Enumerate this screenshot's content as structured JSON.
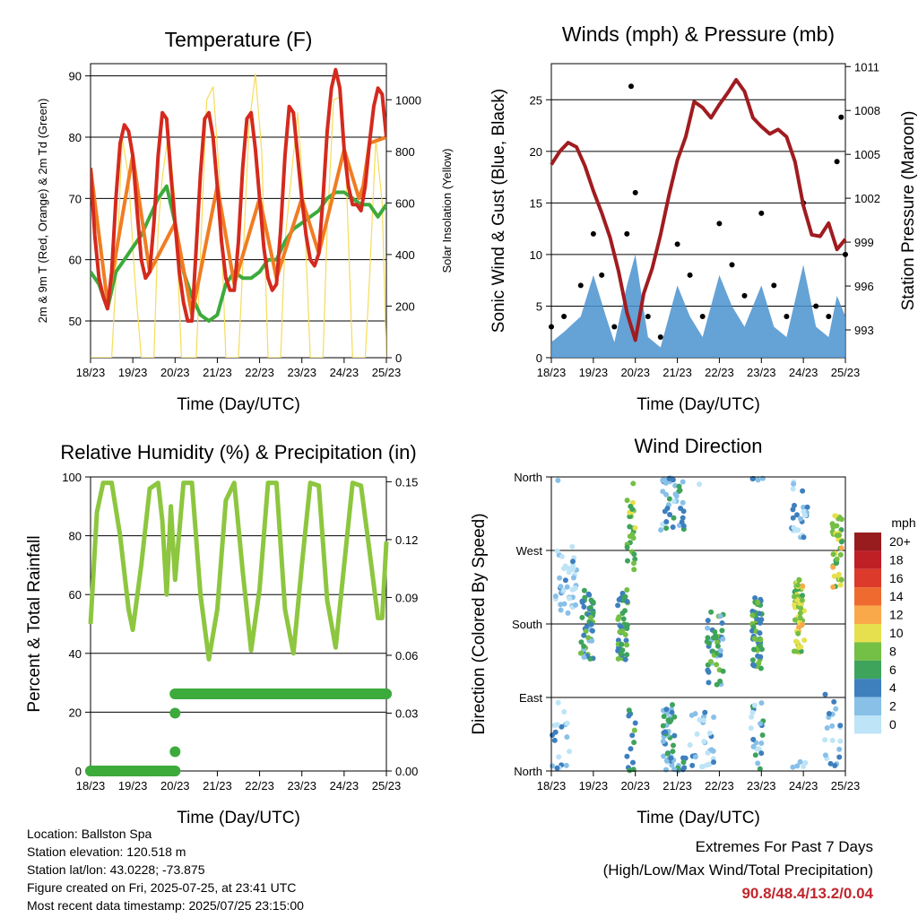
{
  "chart_data": [
    {
      "type": "line",
      "title": "Temperature (F)",
      "xlabel": "Time (Day/UTC)",
      "ylabel": "2m & 9m T (Red, Orange) & 2m Td (Green)",
      "y2label": "Solar Insolation (Yellow)",
      "x_ticks": [
        "18/23",
        "19/23",
        "20/23",
        "21/23",
        "22/23",
        "23/23",
        "24/23",
        "25/23"
      ],
      "ylim": [
        44,
        92
      ],
      "y_ticks": [
        50,
        60,
        70,
        80,
        90
      ],
      "y2lim": [
        0,
        1140
      ],
      "y2_ticks": [
        0,
        200,
        400,
        600,
        800,
        1000
      ],
      "grid": "horizontal",
      "colors": {
        "temp_2m": "#d42a1e",
        "temp_9m": "#f07d22",
        "dewpoint": "#3daa3c",
        "solar": "#f6dc5a"
      },
      "series": [
        {
          "name": "2m T",
          "axis": "left",
          "x": [
            0,
            0.1,
            0.2,
            0.3,
            0.4,
            0.5,
            0.6,
            0.7,
            0.8,
            0.9,
            1.0,
            1.1,
            1.2,
            1.3,
            1.4,
            1.5,
            1.6,
            1.7,
            1.8,
            1.9,
            2.0,
            2.1,
            2.2,
            2.3,
            2.4,
            2.5,
            2.6,
            2.7,
            2.8,
            2.9,
            3.0,
            3.1,
            3.2,
            3.3,
            3.4,
            3.5,
            3.6,
            3.7,
            3.8,
            3.9,
            4.0,
            4.1,
            4.2,
            4.3,
            4.4,
            4.5,
            4.6,
            4.7,
            4.8,
            4.9,
            5.0,
            5.1,
            5.2,
            5.3,
            5.4,
            5.5,
            5.6,
            5.7,
            5.8,
            5.9,
            6.0,
            6.1,
            6.2,
            6.3,
            6.4,
            6.5,
            6.6,
            6.7,
            6.8,
            6.9,
            7.0
          ],
          "y": [
            75,
            64,
            57,
            54,
            52,
            58,
            70,
            79,
            82,
            81,
            77,
            68,
            60,
            57,
            58,
            66,
            77,
            84,
            83,
            74,
            66,
            58,
            53,
            50,
            50,
            62,
            74,
            83,
            84,
            80,
            72,
            63,
            57,
            55,
            55,
            63,
            75,
            83,
            84,
            78,
            70,
            62,
            57,
            55,
            56,
            65,
            77,
            85,
            84,
            77,
            70,
            64,
            60,
            59,
            61,
            70,
            81,
            88,
            91,
            88,
            78,
            72,
            69,
            69,
            68,
            72,
            79,
            85,
            88,
            87,
            80
          ]
        },
        {
          "name": "9m T",
          "axis": "left",
          "x": [
            0,
            0.4,
            1.0,
            1.4,
            2.0,
            2.4,
            3.0,
            3.4,
            4.0,
            4.4,
            5.0,
            5.4,
            6.0,
            6.35,
            6.45,
            6.6,
            7.0
          ],
          "y": [
            75,
            53,
            77,
            58,
            66,
            51,
            72,
            56,
            70,
            57,
            70,
            61,
            78,
            70,
            72,
            79,
            80
          ]
        },
        {
          "name": "2m Td",
          "axis": "left",
          "x": [
            0,
            0.2,
            0.4,
            0.6,
            0.8,
            1.0,
            1.2,
            1.4,
            1.6,
            1.8,
            2.0,
            2.2,
            2.4,
            2.6,
            2.8,
            3.0,
            3.2,
            3.4,
            3.6,
            3.8,
            4.0,
            4.2,
            4.4,
            4.6,
            4.8,
            5.0,
            5.2,
            5.4,
            5.6,
            5.8,
            6.0,
            6.2,
            6.4,
            6.6,
            6.8,
            7.0
          ],
          "y": [
            58,
            56,
            52,
            58,
            60,
            62,
            64,
            67,
            70,
            72,
            66,
            58,
            54,
            51,
            50,
            51,
            56,
            58,
            57,
            57,
            58,
            60,
            60,
            63,
            65,
            66,
            67,
            68,
            70,
            71,
            71,
            70,
            69,
            69,
            67,
            69
          ]
        },
        {
          "name": "Solar",
          "axis": "right",
          "x": [
            0,
            0.5,
            0.6,
            0.75,
            0.9,
            1.05,
            1.2,
            1.5,
            1.6,
            1.7,
            1.85,
            2.0,
            2.15,
            2.5,
            2.6,
            2.75,
            2.9,
            3.05,
            3.2,
            3.5,
            3.6,
            3.75,
            3.9,
            4.05,
            4.2,
            4.5,
            4.6,
            4.75,
            4.9,
            5.05,
            5.2,
            5.5,
            5.6,
            5.75,
            5.9,
            6.05,
            6.2,
            6.5,
            6.6,
            6.75,
            6.9,
            7.0
          ],
          "y": [
            0,
            0,
            300,
            850,
            700,
            300,
            0,
            0,
            500,
            700,
            880,
            600,
            0,
            0,
            400,
            1000,
            1050,
            700,
            0,
            0,
            350,
            900,
            1100,
            800,
            0,
            0,
            450,
            700,
            950,
            600,
            0,
            0,
            500,
            1000,
            1010,
            700,
            0,
            0,
            300,
            850,
            600,
            0
          ]
        }
      ]
    },
    {
      "type": "scatter",
      "title": "Winds (mph) & Pressure (mb)",
      "xlabel": "Time (Day/UTC)",
      "ylabel": "Sonic Wind & Gust (Blue, Black)",
      "y2label": "Station Pressure (Maroon)",
      "x_ticks": [
        "18/23",
        "19/23",
        "20/23",
        "21/23",
        "22/23",
        "23/23",
        "24/23",
        "25/23"
      ],
      "ylim": [
        0,
        28.5
      ],
      "y_ticks": [
        0,
        5,
        10,
        15,
        20,
        25
      ],
      "y2lim": [
        991.1,
        1011.2
      ],
      "y2_ticks": [
        993,
        996,
        999,
        1002,
        1005,
        1008,
        1011
      ],
      "grid": "horizontal",
      "colors": {
        "wind": "#4a92cf",
        "gust": "#000000",
        "pressure": "#a01c20"
      },
      "series": [
        {
          "name": "Sonic Wind",
          "axis": "left",
          "x": [
            0,
            0.3,
            0.7,
            1.0,
            1.3,
            1.5,
            1.8,
            2.0,
            2.3,
            2.6,
            3.0,
            3.3,
            3.6,
            4.0,
            4.3,
            4.6,
            5.0,
            5.3,
            5.6,
            6.0,
            6.3,
            6.6,
            6.8,
            7.0
          ],
          "y": [
            1.5,
            2.5,
            4,
            8,
            4,
            1.5,
            7,
            10,
            2,
            1,
            7,
            4,
            2,
            8,
            5,
            3,
            7,
            3,
            2,
            9,
            3,
            2,
            6,
            4
          ]
        },
        {
          "name": "Gust",
          "axis": "left",
          "x": [
            0,
            0.3,
            0.7,
            1.0,
            1.2,
            1.5,
            1.8,
            1.9,
            2.0,
            2.3,
            2.6,
            3.0,
            3.3,
            3.6,
            4.0,
            4.3,
            4.6,
            5.0,
            5.3,
            5.6,
            6.0,
            6.3,
            6.6,
            6.8,
            6.9,
            7.0
          ],
          "y": [
            3,
            4,
            7,
            12,
            8,
            3,
            12,
            26.3,
            16,
            4,
            2,
            11,
            8,
            4,
            13,
            9,
            6,
            14,
            7,
            4,
            15,
            5,
            4,
            19,
            23.3,
            10
          ]
        },
        {
          "name": "Station Pressure",
          "axis": "right",
          "x": [
            0,
            0.2,
            0.4,
            0.6,
            0.8,
            1.0,
            1.2,
            1.4,
            1.6,
            1.8,
            2.0,
            2.2,
            2.4,
            2.6,
            2.8,
            3.0,
            3.2,
            3.4,
            3.6,
            3.8,
            4.0,
            4.2,
            4.4,
            4.6,
            4.8,
            5.0,
            5.2,
            5.4,
            5.6,
            5.8,
            6.0,
            6.2,
            6.4,
            6.6,
            6.8,
            7.0
          ],
          "y": [
            1004.3,
            1005.2,
            1005.8,
            1005.5,
            1004.2,
            1002.5,
            1001,
            999.3,
            997,
            994.2,
            992.3,
            995.5,
            997.2,
            999.5,
            1002.2,
            1004.6,
            1006.2,
            1008.6,
            1008.2,
            1007.5,
            1008.4,
            1009.2,
            1010.1,
            1009.3,
            1007.5,
            1006.9,
            1006.4,
            1006.7,
            1006.2,
            1004.5,
            1001.5,
            999.5,
            999.4,
            1000.3,
            998.5,
            999.2
          ]
        }
      ]
    },
    {
      "type": "line",
      "title": "Relative Humidity (%) & Precipitation (in)",
      "xlabel": "Time (Day/UTC)",
      "ylabel": "Percent & Total Rainfall",
      "x_ticks": [
        "18/23",
        "19/23",
        "20/23",
        "21/23",
        "22/23",
        "23/23",
        "24/23",
        "25/23"
      ],
      "ylim": [
        0,
        100
      ],
      "y_ticks": [
        0,
        20,
        40,
        60,
        80,
        100
      ],
      "y2lim": [
        0,
        0.1525
      ],
      "y2_ticks": [
        "0.00",
        "0.03",
        "0.06",
        "0.09",
        "0.12",
        "0.15"
      ],
      "grid": "horizontal",
      "colors": {
        "rh": "#8dc63f",
        "precip": "#3daa3c"
      },
      "series": [
        {
          "name": "Relative Humidity",
          "axis": "left",
          "x": [
            0,
            0.15,
            0.3,
            0.5,
            0.7,
            0.9,
            1.0,
            1.2,
            1.4,
            1.6,
            1.7,
            1.8,
            1.9,
            2.0,
            2.2,
            2.4,
            2.6,
            2.8,
            3.0,
            3.2,
            3.4,
            3.6,
            3.8,
            4.0,
            4.2,
            4.4,
            4.6,
            4.8,
            5.0,
            5.2,
            5.4,
            5.6,
            5.8,
            6.0,
            6.2,
            6.4,
            6.6,
            6.8,
            6.9,
            7.0
          ],
          "y": [
            50,
            88,
            98,
            98,
            80,
            55,
            48,
            70,
            96,
            98,
            85,
            60,
            90,
            65,
            98,
            98,
            60,
            38,
            55,
            92,
            98,
            68,
            41,
            62,
            98,
            98,
            55,
            40,
            70,
            98,
            97,
            58,
            42,
            70,
            98,
            97,
            75,
            52,
            52,
            78
          ]
        },
        {
          "name": "Total Precipitation",
          "axis": "right",
          "x": [
            0,
            0.3,
            0.6,
            0.9,
            1.2,
            1.5,
            1.8,
            2.0,
            2.0,
            2.0,
            2.0,
            2.3,
            2.6,
            3.0,
            3.5,
            4.0,
            4.5,
            5.0,
            5.5,
            6.0,
            6.5,
            7.0
          ],
          "y": [
            0,
            0,
            0,
            0,
            0,
            0,
            0,
            0,
            0.01,
            0.03,
            0.04,
            0.04,
            0.04,
            0.04,
            0.04,
            0.04,
            0.04,
            0.04,
            0.04,
            0.04,
            0.04,
            0.04
          ]
        }
      ]
    },
    {
      "type": "scatter",
      "title": "Wind Direction",
      "xlabel": "Time (Day/UTC)",
      "ylabel": "Direction (Colored By Speed)",
      "x_ticks": [
        "18/23",
        "19/23",
        "20/23",
        "21/23",
        "22/23",
        "23/23",
        "24/23",
        "25/23"
      ],
      "y_ticks": [
        "North",
        "East",
        "South",
        "West",
        "North"
      ],
      "ylim": [
        0,
        360
      ],
      "grid": "horizontal",
      "colorbar": {
        "title": "mph",
        "labels": [
          "20+",
          "18",
          "16",
          "14",
          "12",
          "10",
          "8",
          "6",
          "4",
          "2",
          "0"
        ],
        "colors": [
          "#981b1e",
          "#bf2025",
          "#dc3a2a",
          "#ef6a2f",
          "#f9a94a",
          "#e6e04f",
          "#74bf45",
          "#3ea45b",
          "#3e7fbe",
          "#88c0e8",
          "#bde4f7"
        ]
      },
      "clusters": [
        {
          "x_center": 0.35,
          "dir_center": 230,
          "spread": 0.25,
          "speed": 1,
          "count": 40
        },
        {
          "x_center": 0.25,
          "dir_center": 40,
          "spread": 0.3,
          "speed": 1,
          "count": 20
        },
        {
          "x_center": 0.85,
          "dir_center": 180,
          "spread": 0.15,
          "speed": 5,
          "count": 50
        },
        {
          "x_center": 1.7,
          "dir_center": 180,
          "spread": 0.12,
          "speed": 6,
          "count": 45
        },
        {
          "x_center": 1.9,
          "dir_center": 290,
          "spread": 0.1,
          "speed": 8,
          "count": 25
        },
        {
          "x_center": 1.9,
          "dir_center": 35,
          "spread": 0.1,
          "speed": 5,
          "count": 15
        },
        {
          "x_center": 2.9,
          "dir_center": 340,
          "spread": 0.3,
          "speed": 3,
          "count": 50
        },
        {
          "x_center": 2.8,
          "dir_center": 40,
          "spread": 0.15,
          "speed": 4,
          "count": 40
        },
        {
          "x_center": 3.9,
          "dir_center": 150,
          "spread": 0.2,
          "speed": 5,
          "count": 45
        },
        {
          "x_center": 3.6,
          "dir_center": 30,
          "spread": 0.3,
          "speed": 2,
          "count": 30
        },
        {
          "x_center": 4.9,
          "dir_center": 170,
          "spread": 0.12,
          "speed": 6,
          "count": 55
        },
        {
          "x_center": 4.9,
          "dir_center": 40,
          "spread": 0.15,
          "speed": 3,
          "count": 25
        },
        {
          "x_center": 5.9,
          "dir_center": 190,
          "spread": 0.12,
          "speed": 9,
          "count": 60
        },
        {
          "x_center": 5.9,
          "dir_center": 330,
          "spread": 0.2,
          "speed": 2,
          "count": 30
        },
        {
          "x_center": 6.8,
          "dir_center": 270,
          "spread": 0.12,
          "speed": 9,
          "count": 40
        },
        {
          "x_center": 6.7,
          "dir_center": 50,
          "spread": 0.2,
          "speed": 2,
          "count": 20
        }
      ]
    }
  ],
  "info": {
    "location": "Location: Ballston Spa",
    "elevation": "Station elevation: 120.518 m",
    "latlon": "Station lat/lon: 43.0228; -73.875",
    "created": "Figure created on Fri, 2025-07-25, at 23:41 UTC",
    "recent": "Most recent data timestamp: 2025/07/25 23:15:00"
  },
  "extremes": {
    "title": "Extremes For Past 7 Days",
    "subtitle": "(High/Low/Max Wind/Total Precipitation)",
    "values": "90.8/48.4/13.2/0.04"
  }
}
